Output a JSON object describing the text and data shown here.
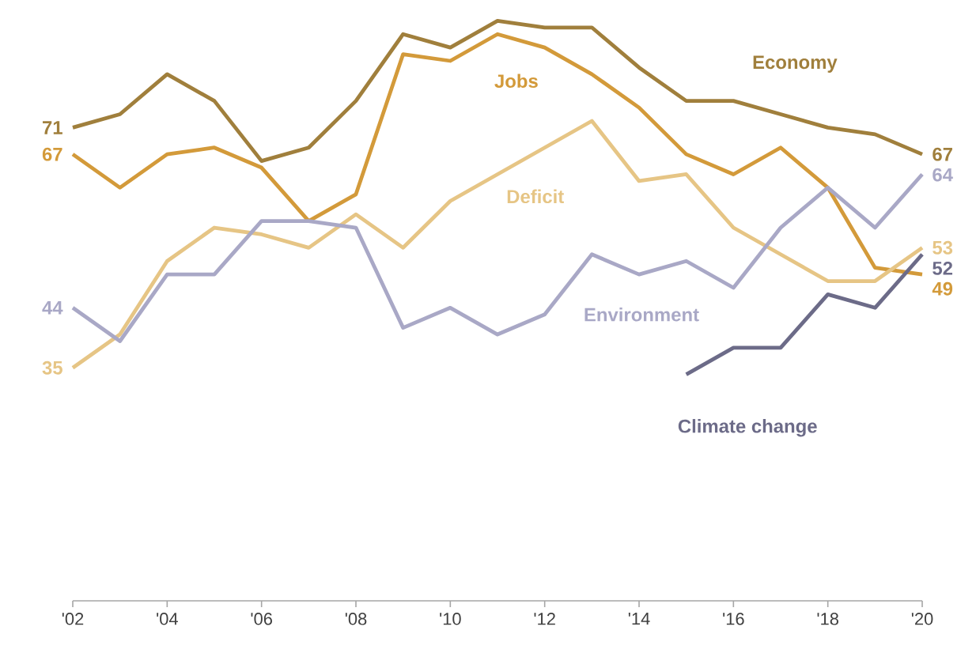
{
  "chart_data": {
    "type": "line",
    "x": [
      2002,
      2003,
      2004,
      2005,
      2006,
      2007,
      2008,
      2009,
      2010,
      2011,
      2012,
      2013,
      2014,
      2015,
      2016,
      2017,
      2018,
      2019,
      2020
    ],
    "xlim": [
      2002,
      2020
    ],
    "xticks": [
      {
        "value": 2002,
        "label": "'02"
      },
      {
        "value": 2004,
        "label": "'04"
      },
      {
        "value": 2006,
        "label": "'06"
      },
      {
        "value": 2008,
        "label": "'08"
      },
      {
        "value": 2010,
        "label": "'10"
      },
      {
        "value": 2012,
        "label": "'12"
      },
      {
        "value": 2014,
        "label": "'14"
      },
      {
        "value": 2016,
        "label": "'16"
      },
      {
        "value": 2018,
        "label": "'18"
      },
      {
        "value": 2020,
        "label": "'20"
      }
    ],
    "tick_labels": "x",
    "series": [
      {
        "name": "Economy",
        "color": "#a07f3c",
        "values": [
          71,
          73,
          79,
          75,
          66,
          68,
          75,
          85,
          83,
          87,
          86,
          86,
          80,
          75,
          75,
          73,
          71,
          70,
          67
        ],
        "value_labels": [
          "71",
          null,
          null,
          null,
          null,
          null,
          null,
          null,
          null,
          null,
          null,
          null,
          null,
          null,
          null,
          null,
          null,
          null,
          "67"
        ]
      },
      {
        "name": "Jobs",
        "color": "#d39a3a",
        "values": [
          67,
          62,
          67,
          68,
          65,
          57,
          61,
          82,
          81,
          85,
          83,
          79,
          74,
          67,
          64,
          68,
          62,
          50,
          49
        ],
        "value_labels": [
          "67",
          null,
          null,
          null,
          null,
          null,
          null,
          null,
          null,
          null,
          null,
          null,
          null,
          null,
          null,
          null,
          null,
          null,
          "49"
        ]
      },
      {
        "name": "Deficit",
        "color": "#e6c585",
        "values": [
          35,
          40,
          51,
          56,
          55,
          53,
          58,
          53,
          60,
          64,
          68,
          72,
          63,
          64,
          56,
          52,
          48,
          48,
          53
        ],
        "value_labels": [
          "35",
          null,
          null,
          null,
          null,
          null,
          null,
          null,
          null,
          null,
          null,
          null,
          null,
          null,
          null,
          null,
          null,
          null,
          "53"
        ]
      },
      {
        "name": "Environment",
        "color": "#a9a8c6",
        "values": [
          44,
          39,
          49,
          49,
          57,
          57,
          56,
          41,
          44,
          40,
          43,
          52,
          49,
          51,
          47,
          56,
          62,
          56,
          64
        ],
        "value_labels": [
          "44",
          null,
          null,
          null,
          null,
          null,
          null,
          null,
          null,
          null,
          null,
          null,
          null,
          null,
          null,
          null,
          null,
          null,
          "64"
        ]
      },
      {
        "name": "Climate change",
        "color": "#6c6b88",
        "values": [
          null,
          null,
          null,
          null,
          null,
          null,
          null,
          null,
          null,
          null,
          null,
          null,
          null,
          34,
          38,
          38,
          46,
          44,
          52
        ],
        "value_labels": [
          null,
          null,
          null,
          null,
          null,
          null,
          null,
          null,
          null,
          null,
          null,
          null,
          null,
          null,
          null,
          null,
          null,
          null,
          "52"
        ]
      }
    ]
  }
}
